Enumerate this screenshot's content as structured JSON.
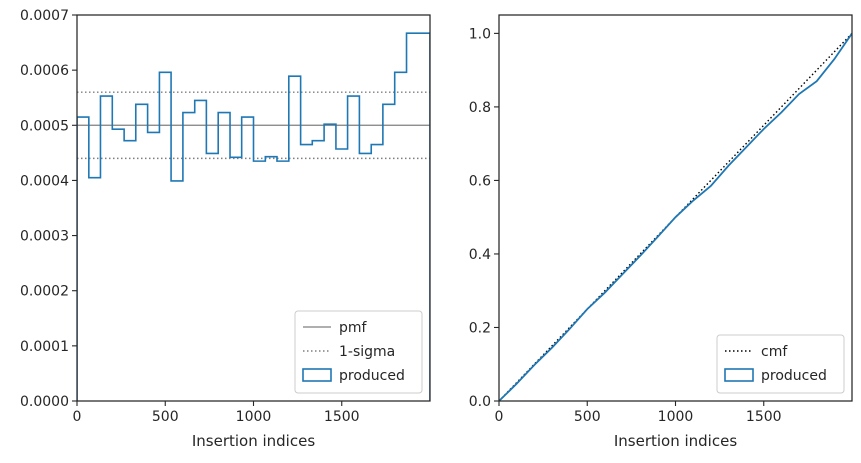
{
  "chart_data": [
    {
      "type": "step",
      "xlabel": "Insertion indices",
      "ylabel": "",
      "xlim": [
        0,
        2000
      ],
      "ylim": [
        0,
        0.0007
      ],
      "xticks": [
        0,
        500,
        1000,
        1500
      ],
      "xtick_labels": [
        "0",
        "500",
        "1000",
        "1500"
      ],
      "yticks": [
        0,
        0.0001,
        0.0002,
        0.0003,
        0.0004,
        0.0005,
        0.0006,
        0.0007
      ],
      "ytick_labels": [
        "0.0000",
        "0.0001",
        "0.0002",
        "0.0003",
        "0.0004",
        "0.0005",
        "0.0006",
        "0.0007"
      ],
      "grid": false,
      "legend_position": "lower-right",
      "bin_edges": [
        0,
        67,
        133,
        200,
        267,
        333,
        400,
        467,
        533,
        600,
        667,
        733,
        800,
        867,
        933,
        1000,
        1067,
        1133,
        1200,
        1267,
        1333,
        1400,
        1467,
        1533,
        1600,
        1667,
        1733,
        1800,
        1867,
        1933,
        2000
      ],
      "series": [
        {
          "name": "pmf",
          "style": "solid",
          "color": "#7f7f7f",
          "y": 0.0005
        },
        {
          "name": "1-sigma",
          "style": "dotted",
          "color": "#7f7f7f",
          "y_lower": 0.00044,
          "y_upper": 0.00056
        },
        {
          "name": "produced",
          "style": "step",
          "color": "#1f77b4",
          "values": [
            0.000515,
            0.000405,
            0.000553,
            0.000493,
            0.000472,
            0.000538,
            0.000487,
            0.000596,
            0.000399,
            0.000523,
            0.000545,
            0.000449,
            0.000523,
            0.000442,
            0.000515,
            0.000435,
            0.000443,
            0.000435,
            0.000589,
            0.000465,
            0.000472,
            0.000502,
            0.000457,
            0.000553,
            0.000449,
            0.000465,
            0.000538,
            0.000596,
            0.000667,
            0.000667
          ]
        }
      ]
    },
    {
      "type": "line",
      "xlabel": "Insertion indices",
      "ylabel": "",
      "xlim": [
        0,
        2000
      ],
      "ylim": [
        0,
        1.05
      ],
      "xticks": [
        0,
        500,
        1000,
        1500
      ],
      "xtick_labels": [
        "0",
        "500",
        "1000",
        "1500"
      ],
      "yticks": [
        0,
        0.2,
        0.4,
        0.6,
        0.8,
        1.0
      ],
      "ytick_labels": [
        "0.0",
        "0.2",
        "0.4",
        "0.6",
        "0.8",
        "1.0"
      ],
      "grid": false,
      "legend_position": "lower-right",
      "series": [
        {
          "name": "cmf",
          "style": "dotted",
          "color": "#000000",
          "x": [
            0,
            2000
          ],
          "y": [
            0,
            1.0
          ]
        },
        {
          "name": "produced",
          "style": "step",
          "color": "#1f77b4",
          "x": [
            0,
            100,
            200,
            300,
            400,
            500,
            600,
            700,
            800,
            900,
            1000,
            1100,
            1200,
            1300,
            1400,
            1500,
            1600,
            1700,
            1800,
            1900,
            2000
          ],
          "y": [
            0,
            0.047,
            0.098,
            0.145,
            0.196,
            0.25,
            0.295,
            0.345,
            0.395,
            0.447,
            0.5,
            0.545,
            0.585,
            0.64,
            0.69,
            0.74,
            0.785,
            0.835,
            0.87,
            0.93,
            1.0
          ]
        }
      ]
    }
  ]
}
